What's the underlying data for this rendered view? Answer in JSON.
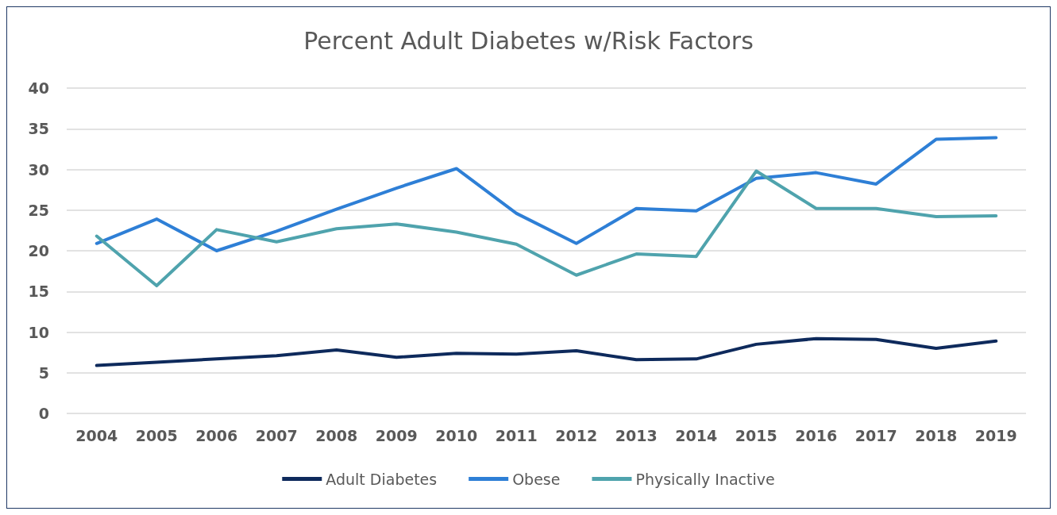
{
  "chart_data": {
    "type": "line",
    "title": "Percent Adult Diabetes w/Risk Factors",
    "categories": [
      "2004",
      "2005",
      "2006",
      "2007",
      "2008",
      "2009",
      "2010",
      "2011",
      "2012",
      "2013",
      "2014",
      "2015",
      "2016",
      "2017",
      "2018",
      "2019"
    ],
    "series": [
      {
        "name": "Adult Diabetes",
        "color": "#0e2a5c",
        "values": [
          5.9,
          6.3,
          6.7,
          7.1,
          7.8,
          6.9,
          7.4,
          7.3,
          7.7,
          6.6,
          6.7,
          8.5,
          9.2,
          9.1,
          8.0,
          8.9
        ]
      },
      {
        "name": "Obese",
        "color": "#2e7fd6",
        "values": [
          20.9,
          23.9,
          20.0,
          22.4,
          25.1,
          27.7,
          30.1,
          24.6,
          20.9,
          25.2,
          24.9,
          28.9,
          29.6,
          28.2,
          33.7,
          33.9
        ]
      },
      {
        "name": "Physically Inactive",
        "color": "#4fa3ad",
        "values": [
          21.8,
          15.7,
          22.6,
          21.1,
          22.7,
          23.3,
          22.3,
          20.8,
          17.0,
          19.6,
          19.3,
          29.8,
          25.2,
          25.2,
          24.2,
          24.3
        ]
      }
    ],
    "ylim": [
      0,
      40
    ],
    "yticks": [
      0,
      5,
      10,
      15,
      20,
      25,
      30,
      35,
      40
    ],
    "grid": "y",
    "legend": "bottom",
    "marker": "none",
    "line_style": "solid"
  }
}
